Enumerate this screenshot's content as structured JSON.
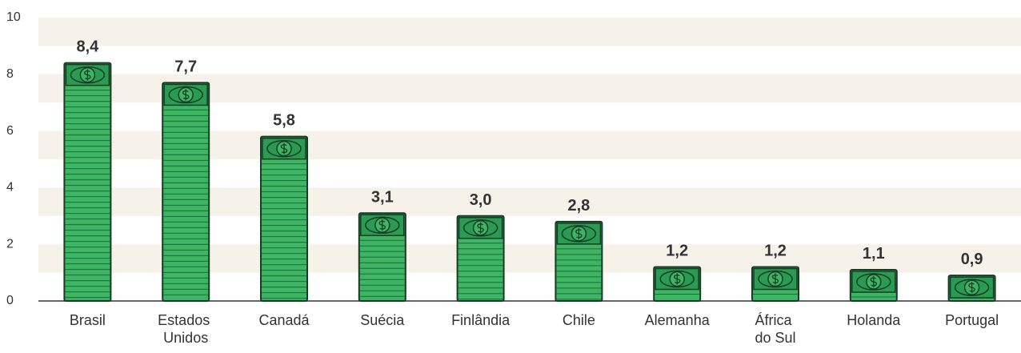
{
  "chart_data": {
    "type": "bar",
    "categories": [
      "Brasil",
      "Estados Unidos",
      "Canadá",
      "Suécia",
      "Finlândia",
      "Chile",
      "Alemanha",
      "África do Sul",
      "Holanda",
      "Portugal"
    ],
    "values": [
      8.4,
      7.7,
      5.8,
      3.1,
      3.0,
      2.8,
      1.2,
      1.2,
      1.1,
      0.9
    ],
    "value_labels": [
      "8,4",
      "7,7",
      "5,8",
      "3,1",
      "3,0",
      "2,8",
      "1,2",
      "1,2",
      "1,1",
      "0,9"
    ],
    "color": "#3db563",
    "ylim": [
      0,
      10
    ],
    "yticks": [
      0,
      2,
      4,
      6,
      8,
      10
    ],
    "grid": true
  }
}
